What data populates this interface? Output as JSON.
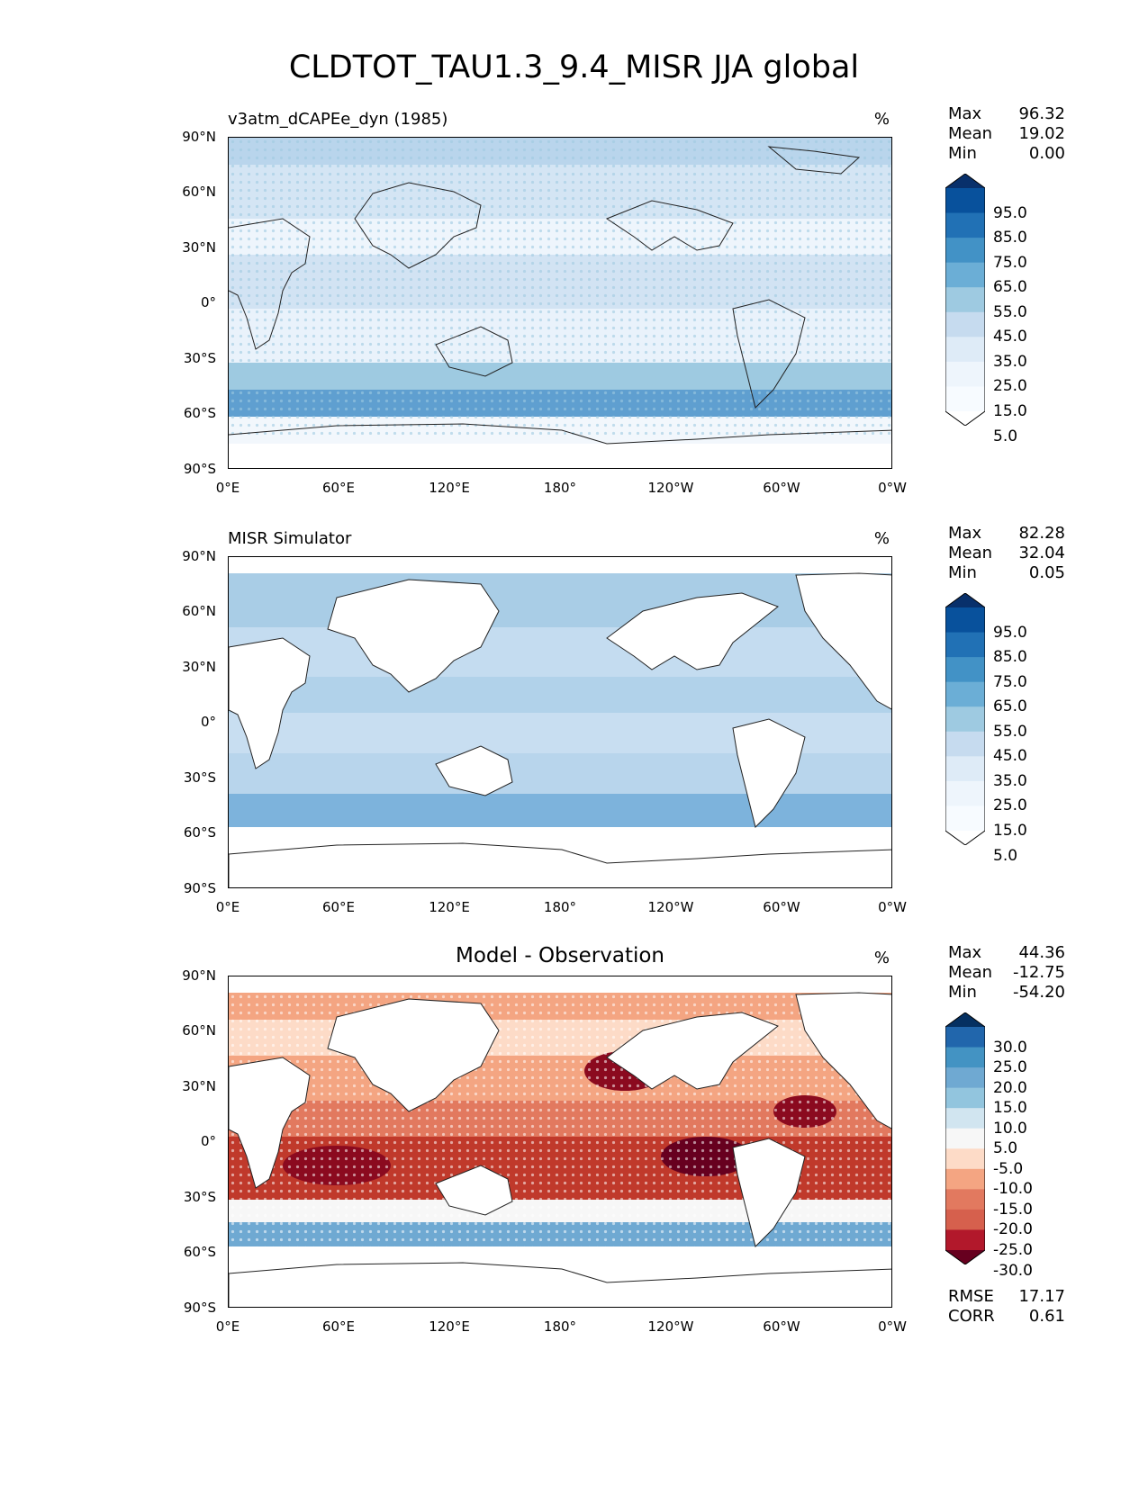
{
  "figure_title": "CLDTOT_TAU1.3_9.4_MISR JJA global",
  "lat_ticks": [
    "90°N",
    "60°N",
    "30°N",
    "0°",
    "30°S",
    "60°S",
    "90°S"
  ],
  "lon_ticks": [
    "0°E",
    "60°E",
    "120°E",
    "180°",
    "120°W",
    "60°W",
    "0°W"
  ],
  "stat_labels": {
    "max": "Max",
    "mean": "Mean",
    "min": "Min"
  },
  "panels": [
    {
      "title": "v3atm_dCAPEe_dyn (1985)",
      "units": "%",
      "stats": {
        "max": "96.32",
        "mean": "19.02",
        "min": "0.00"
      },
      "colorbar_labels": [
        "95.0",
        "85.0",
        "75.0",
        "65.0",
        "55.0",
        "45.0",
        "35.0",
        "25.0",
        "15.0",
        "5.0"
      ],
      "colorbar_colors": [
        "#08306b",
        "#08519c",
        "#2171b5",
        "#4292c6",
        "#6baed6",
        "#9ecae1",
        "#c6dbef",
        "#deebf7",
        "#eef5fc",
        "#f7fbff",
        "#ffffff"
      ]
    },
    {
      "title": "MISR Simulator",
      "units": "%",
      "stats": {
        "max": "82.28",
        "mean": "32.04",
        "min": "0.05"
      },
      "colorbar_labels": [
        "95.0",
        "85.0",
        "75.0",
        "65.0",
        "55.0",
        "45.0",
        "35.0",
        "25.0",
        "15.0",
        "5.0"
      ],
      "colorbar_colors": [
        "#08306b",
        "#08519c",
        "#2171b5",
        "#4292c6",
        "#6baed6",
        "#9ecae1",
        "#c6dbef",
        "#deebf7",
        "#eef5fc",
        "#f7fbff",
        "#ffffff"
      ]
    },
    {
      "title": "Model - Observation",
      "units": "%",
      "stats": {
        "max": "44.36",
        "mean": "-12.75",
        "min": "-54.20"
      },
      "colorbar_labels": [
        "30.0",
        "25.0",
        "20.0",
        "15.0",
        "10.0",
        "5.0",
        "-5.0",
        "-10.0",
        "-15.0",
        "-20.0",
        "-25.0",
        "-30.0"
      ],
      "colorbar_colors": [
        "#053061",
        "#2166ac",
        "#4393c3",
        "#6fa9d2",
        "#92c5de",
        "#d1e5f0",
        "#f7f7f7",
        "#fddbc7",
        "#f4a582",
        "#e2795f",
        "#d6604d",
        "#b2182b",
        "#67001f"
      ],
      "metrics": {
        "rmse_label": "RMSE",
        "rmse": "17.17",
        "corr_label": "CORR",
        "corr": "0.61"
      }
    }
  ]
}
